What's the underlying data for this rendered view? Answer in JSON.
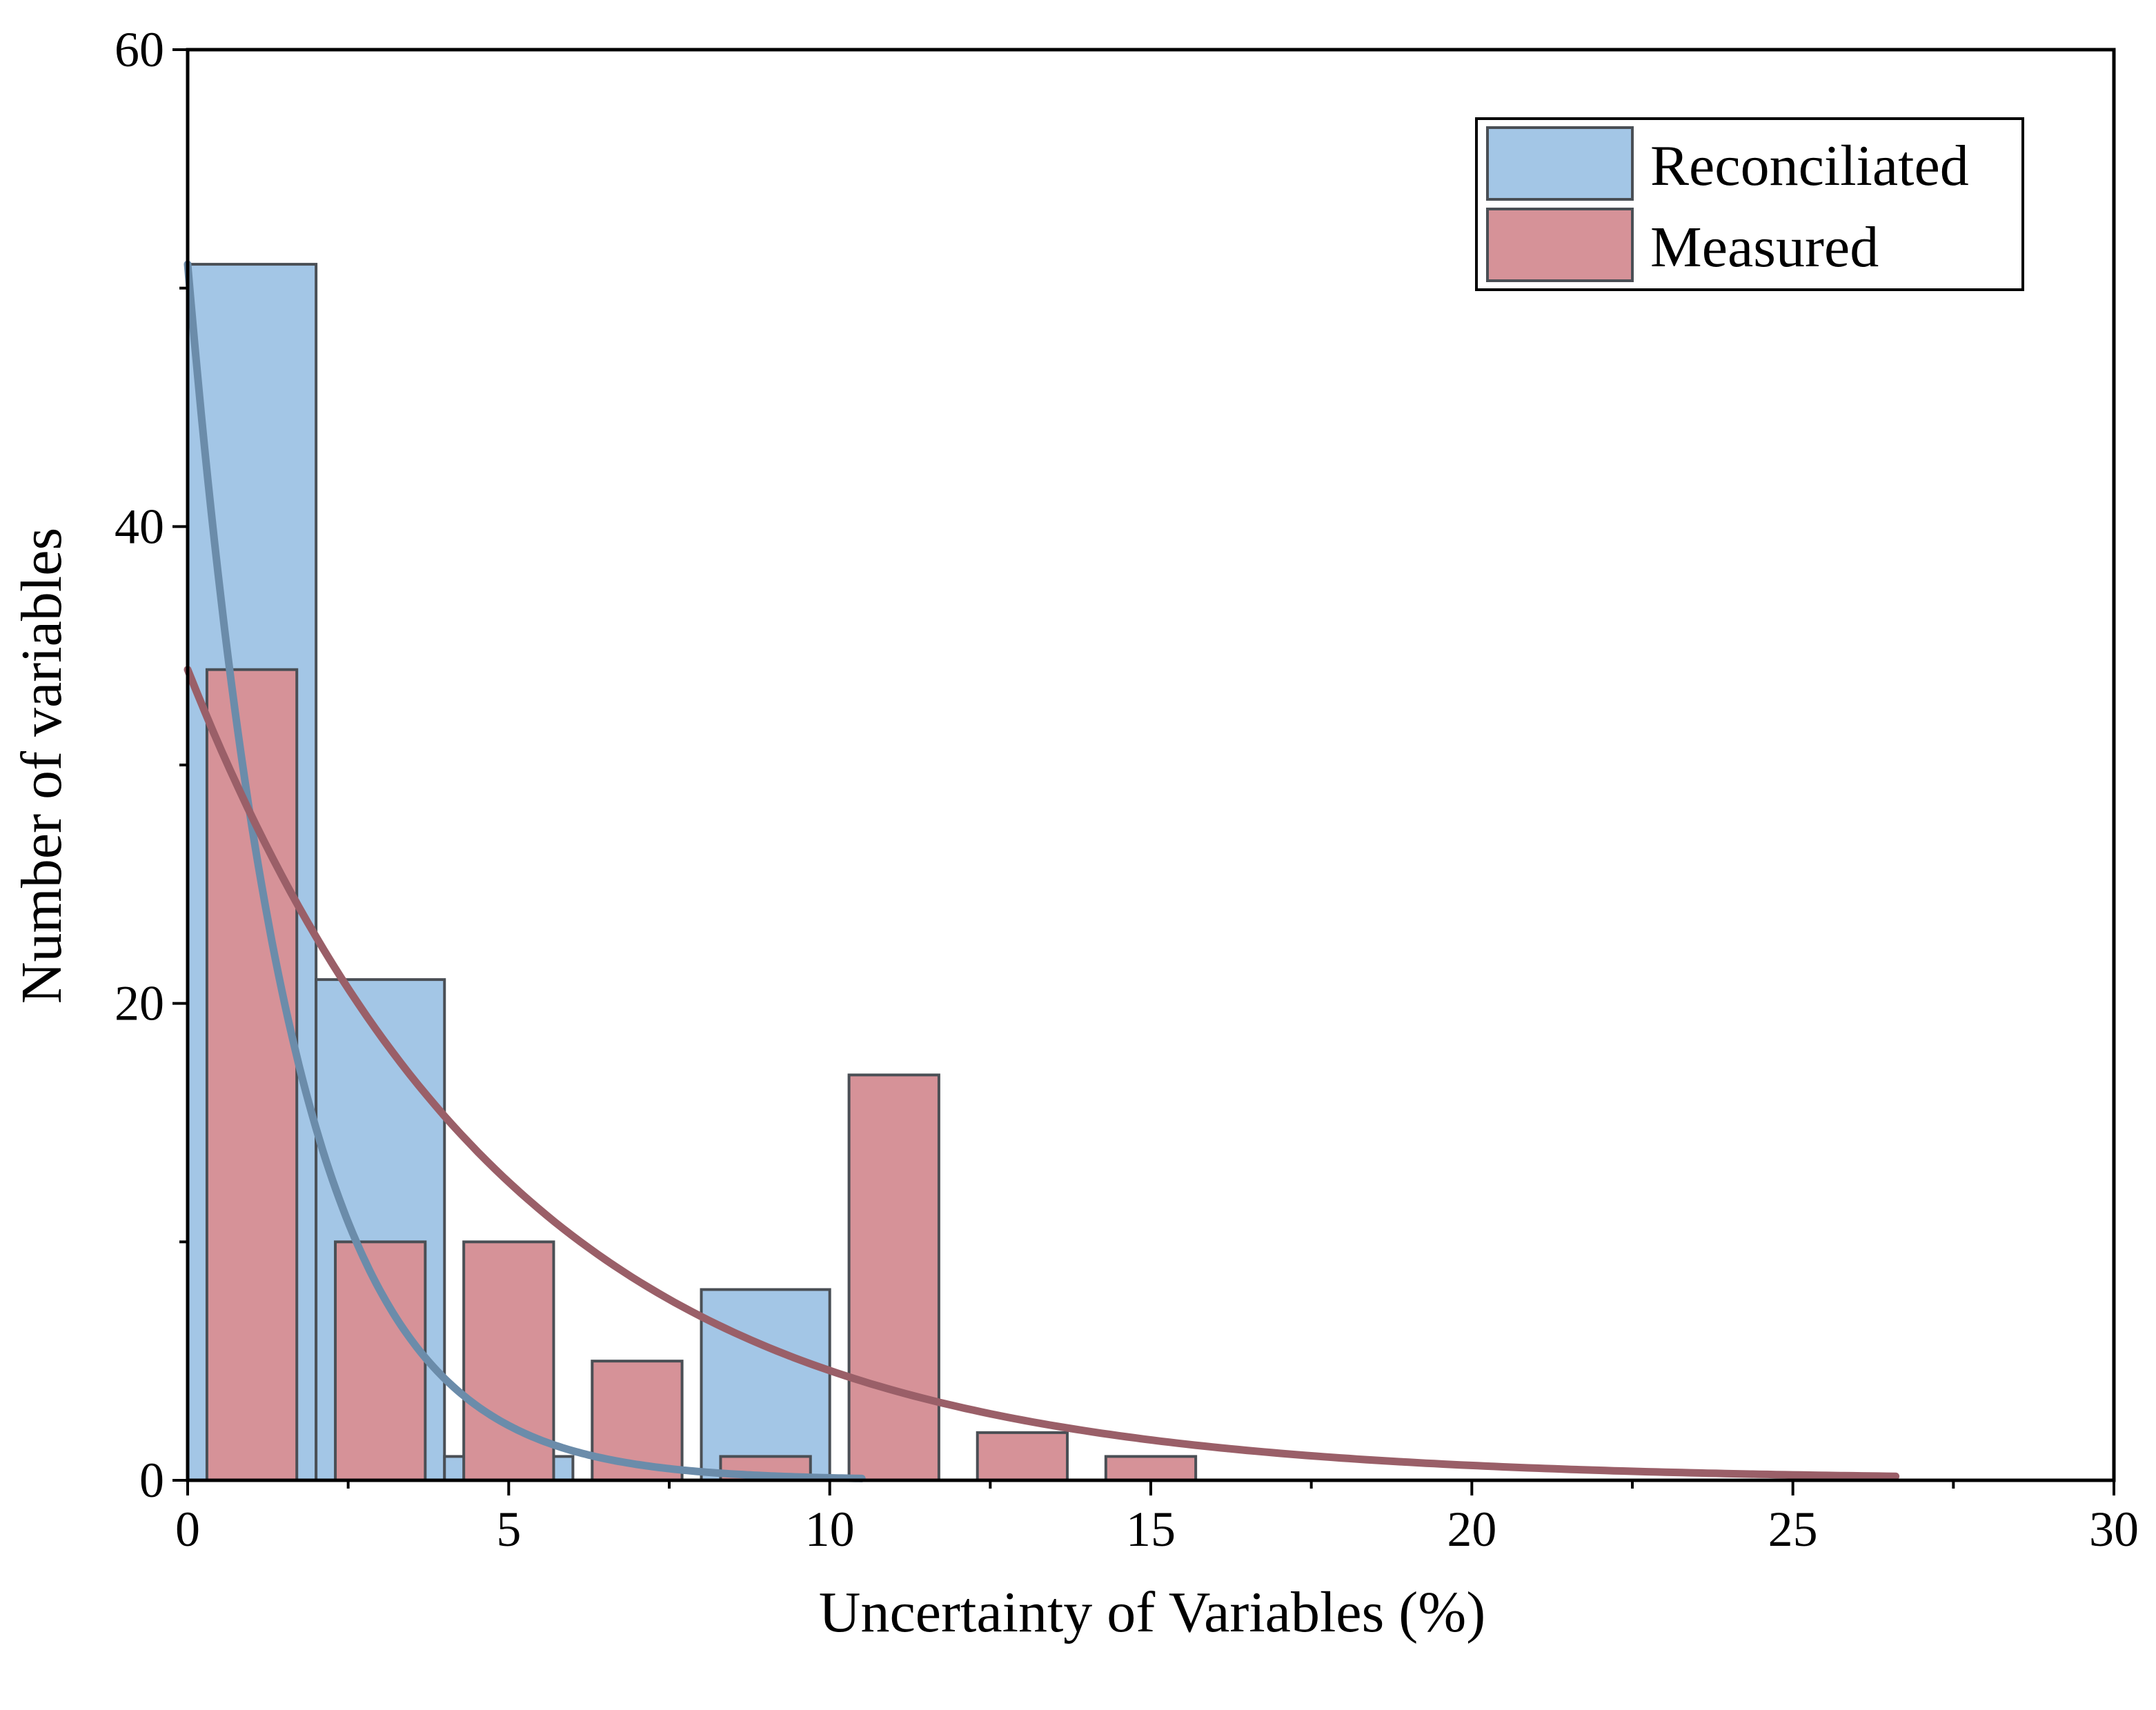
{
  "chart_data": {
    "type": "bar",
    "title": "",
    "xlabel": "Uncertainty of Variables (%)",
    "ylabel": "Number of variables",
    "xlim": [
      0,
      30
    ],
    "ylim": [
      0,
      60
    ],
    "xticks": [
      0,
      5,
      10,
      15,
      20,
      25,
      30
    ],
    "xtick_labels": [
      "0",
      "5",
      "10",
      "15",
      "20",
      "25",
      "30"
    ],
    "yticks": [
      0,
      20,
      40,
      60
    ],
    "ytick_labels": [
      "0",
      "20",
      "40",
      "60"
    ],
    "legend_position": "top-right",
    "series": [
      {
        "name": "Reconciliated",
        "color": "#a3c6e6",
        "curve_color": "#6b8caa",
        "bins": [
          {
            "from": 0,
            "to": 2,
            "count": 51
          },
          {
            "from": 2,
            "to": 4,
            "count": 21
          },
          {
            "from": 4,
            "to": 6,
            "count": 1
          },
          {
            "from": 6,
            "to": 8,
            "count": 0
          },
          {
            "from": 8,
            "to": 10,
            "count": 8
          }
        ],
        "fit_curve": {
          "type": "exponential",
          "x_end": 10.5,
          "y0": 51,
          "decay": 0.62
        }
      },
      {
        "name": "Measured",
        "color": "#d69298",
        "curve_color": "#9a5f68",
        "bins": [
          {
            "from": 0.3,
            "to": 1.7,
            "count": 34
          },
          {
            "from": 2.3,
            "to": 3.7,
            "count": 10
          },
          {
            "from": 4.3,
            "to": 5.7,
            "count": 10
          },
          {
            "from": 6.3,
            "to": 7.7,
            "count": 5
          },
          {
            "from": 8.3,
            "to": 9.7,
            "count": 1
          },
          {
            "from": 10.3,
            "to": 11.7,
            "count": 17
          },
          {
            "from": 12.3,
            "to": 13.7,
            "count": 2
          },
          {
            "from": 14.3,
            "to": 15.7,
            "count": 1
          }
        ],
        "fit_curve": {
          "type": "exponential",
          "x_end": 26.6,
          "y0": 34,
          "decay": 0.2
        }
      }
    ]
  }
}
